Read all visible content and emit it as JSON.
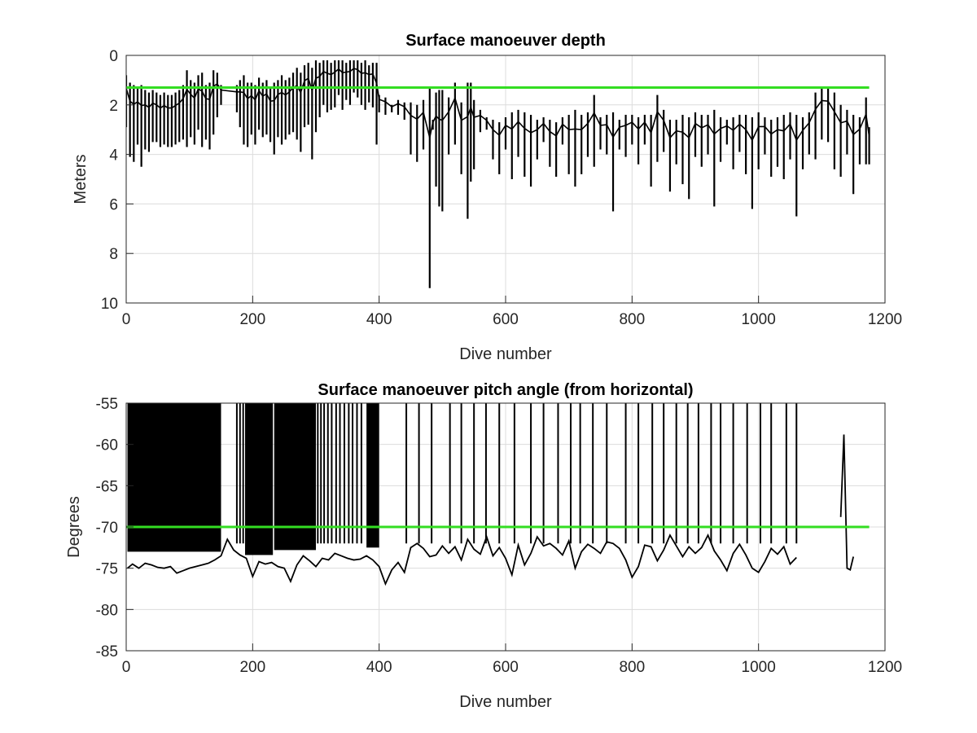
{
  "colors": {
    "data": "#000000",
    "reference": "#33dd22",
    "grid": "#dcdcdc",
    "axis": "#262626"
  },
  "chart_data": [
    {
      "type": "line",
      "title": "Surface manoeuver depth",
      "xlabel": "Dive number",
      "ylabel": "Meters",
      "xlim": [
        0,
        1200
      ],
      "ylim": [
        0,
        10
      ],
      "y_reversed": true,
      "grid": true,
      "xticks": [
        "0",
        "200",
        "400",
        "600",
        "800",
        "1000",
        "1200"
      ],
      "yticks": [
        "0",
        "2",
        "4",
        "6",
        "8",
        "10"
      ],
      "reference_line": {
        "y": 1.3,
        "x_range": [
          0,
          1175
        ]
      },
      "series": [
        {
          "x": [
            0,
            6,
            12,
            18,
            24,
            30,
            36,
            42,
            48,
            54,
            60,
            66,
            72,
            78,
            84,
            90,
            96,
            102,
            108,
            114,
            120,
            126,
            132,
            138,
            144,
            150,
            175,
            180,
            186,
            192,
            198,
            204,
            210,
            216,
            222,
            228,
            234,
            240,
            246,
            252,
            258,
            264,
            270,
            276,
            282,
            288,
            294,
            300,
            306,
            312,
            318,
            324,
            330,
            336,
            342,
            348,
            354,
            360,
            366,
            372,
            378,
            384,
            390,
            396,
            400,
            410,
            420,
            430,
            440,
            450,
            460,
            470,
            480,
            485,
            490,
            495,
            500,
            510,
            520,
            530,
            540,
            545,
            550,
            560,
            570,
            580,
            590,
            600,
            610,
            620,
            630,
            640,
            650,
            660,
            670,
            680,
            690,
            700,
            710,
            720,
            730,
            740,
            750,
            760,
            770,
            780,
            790,
            800,
            810,
            820,
            830,
            840,
            850,
            860,
            870,
            880,
            890,
            900,
            910,
            920,
            930,
            940,
            950,
            960,
            970,
            980,
            990,
            1000,
            1010,
            1020,
            1030,
            1040,
            1050,
            1060,
            1070,
            1080,
            1090,
            1100,
            1110,
            1120,
            1130,
            1140,
            1150,
            1160,
            1170,
            1175
          ],
          "low": [
            0.8,
            1.1,
            1.2,
            1.3,
            1.2,
            1.4,
            1.5,
            1.4,
            1.5,
            1.6,
            1.5,
            1.6,
            1.6,
            1.5,
            1.4,
            1.2,
            0.6,
            1.0,
            1.1,
            0.8,
            0.7,
            1.2,
            1.1,
            0.6,
            0.7,
            1.2,
            1.2,
            1.0,
            0.8,
            1.1,
            1.1,
            1.2,
            0.9,
            1.1,
            1.0,
            1.3,
            1.1,
            1.0,
            0.8,
            1.0,
            0.9,
            0.7,
            0.5,
            0.7,
            0.4,
            0.3,
            0.5,
            0.2,
            0.3,
            0.2,
            0.2,
            0.3,
            0.2,
            0.2,
            0.2,
            0.3,
            0.2,
            0.2,
            0.2,
            0.3,
            0.2,
            0.4,
            0.3,
            0.3,
            1.6,
            1.7,
            2.0,
            1.8,
            1.9,
            1.9,
            2.0,
            1.8,
            1.3,
            2.6,
            1.5,
            1.4,
            1.4,
            1.7,
            1.1,
            1.9,
            1.1,
            1.1,
            1.8,
            2.2,
            2.5,
            2.6,
            2.7,
            2.5,
            2.3,
            2.2,
            2.3,
            2.4,
            2.6,
            2.5,
            2.6,
            2.7,
            2.5,
            2.4,
            2.2,
            2.4,
            2.3,
            1.6,
            2.5,
            2.4,
            2.3,
            2.6,
            2.4,
            2.4,
            2.5,
            2.4,
            2.4,
            1.6,
            2.2,
            2.6,
            2.6,
            2.4,
            2.5,
            2.3,
            2.4,
            2.4,
            2.2,
            2.5,
            2.6,
            2.5,
            2.4,
            2.4,
            2.5,
            2.3,
            2.5,
            2.6,
            2.5,
            2.4,
            2.3,
            2.4,
            2.5,
            2.3,
            1.5,
            1.3,
            1.3,
            1.5,
            2.0,
            2.2,
            2.4,
            2.5,
            1.7,
            2.9
          ],
          "high": [
            2.9,
            4.1,
            4.3,
            3.6,
            4.5,
            3.8,
            3.9,
            3.5,
            3.5,
            3.7,
            3.6,
            3.7,
            3.7,
            3.6,
            3.5,
            3.4,
            3.7,
            3.3,
            3.6,
            3.0,
            3.7,
            3.4,
            3.8,
            3.2,
            2.5,
            2.0,
            2.3,
            2.9,
            3.6,
            3.7,
            3.2,
            3.6,
            3.0,
            3.3,
            3.2,
            3.5,
            4.0,
            3.3,
            3.6,
            3.4,
            3.2,
            3.1,
            3.4,
            3.9,
            2.9,
            2.8,
            4.2,
            3.1,
            2.5,
            2.0,
            2.3,
            2.2,
            2.1,
            1.6,
            2.2,
            1.8,
            2.0,
            1.5,
            1.7,
            2.0,
            2.2,
            1.9,
            2.1,
            3.6,
            2.3,
            2.4,
            2.3,
            2.4,
            2.6,
            4.0,
            4.3,
            3.8,
            9.4,
            3.0,
            5.3,
            6.1,
            6.3,
            4.0,
            3.6,
            4.8,
            6.6,
            5.1,
            4.6,
            3.1,
            3.0,
            4.2,
            4.8,
            3.8,
            5.0,
            4.1,
            4.9,
            5.3,
            4.2,
            3.5,
            4.5,
            4.9,
            3.6,
            4.8,
            5.3,
            4.8,
            4.1,
            4.5,
            3.8,
            4.0,
            6.3,
            3.8,
            4.1,
            3.6,
            4.4,
            3.6,
            5.3,
            4.3,
            3.9,
            5.5,
            4.4,
            5.2,
            5.8,
            4.1,
            4.5,
            4.0,
            6.1,
            4.3,
            3.6,
            4.6,
            3.9,
            4.8,
            6.2,
            4.6,
            4.0,
            4.9,
            4.5,
            5.0,
            4.2,
            6.5,
            4.6,
            4.0,
            4.2,
            3.4,
            3.5,
            4.6,
            4.9,
            4.0,
            5.6,
            4.4,
            4.4,
            4.4
          ]
        }
      ]
    },
    {
      "type": "line",
      "title": "Surface manoeuver pitch angle (from horizontal)",
      "xlabel": "Dive number",
      "ylabel": "Degrees",
      "xlim": [
        0,
        1200
      ],
      "ylim": [
        -85,
        -55
      ],
      "grid": true,
      "xticks": [
        "0",
        "200",
        "400",
        "600",
        "800",
        "1000",
        "1200"
      ],
      "yticks": [
        "-55",
        "-60",
        "-65",
        "-70",
        "-75",
        "-80",
        "-85"
      ],
      "reference_line": {
        "y": -70,
        "x_range": [
          0,
          1175
        ]
      },
      "dense_regions": [
        {
          "x_range": [
            2,
            150
          ],
          "y_bottom": -73.0
        },
        {
          "x_range": [
            188,
            232
          ],
          "y_bottom": -73.4
        },
        {
          "x_range": [
            234,
            300
          ],
          "y_bottom": -72.8
        },
        {
          "x_range": [
            380,
            400
          ],
          "y_bottom": -72.5
        }
      ],
      "spikes_x": [
        175,
        180,
        185,
        303,
        308,
        313,
        319,
        325,
        332,
        338,
        345,
        352,
        358,
        365,
        372,
        443,
        463,
        483,
        512,
        530,
        550,
        569,
        590,
        614,
        640,
        660,
        683,
        703,
        718,
        738,
        760,
        790,
        810,
        832,
        850,
        870,
        888,
        905,
        925,
        940,
        960,
        982,
        1003,
        1020,
        1044,
        1060
      ],
      "series": [
        {
          "x": [
            2,
            10,
            20,
            30,
            40,
            50,
            60,
            70,
            80,
            90,
            100,
            110,
            120,
            130,
            140,
            150,
            160,
            170,
            180,
            190,
            200,
            210,
            220,
            230,
            240,
            250,
            260,
            270,
            280,
            290,
            300,
            310,
            320,
            330,
            340,
            350,
            360,
            370,
            380,
            390,
            400,
            410,
            420,
            430,
            440,
            450,
            460,
            470,
            480,
            490,
            500,
            510,
            520,
            530,
            540,
            550,
            560,
            570,
            580,
            590,
            600,
            610,
            620,
            630,
            640,
            650,
            660,
            670,
            680,
            690,
            700,
            710,
            720,
            730,
            740,
            750,
            760,
            770,
            780,
            790,
            800,
            810,
            820,
            830,
            840,
            850,
            860,
            870,
            880,
            890,
            900,
            910,
            920,
            930,
            940,
            950,
            960,
            970,
            980,
            990,
            1000,
            1010,
            1020,
            1030,
            1040,
            1050,
            1060
          ],
          "y": [
            -75.0,
            -74.5,
            -75.0,
            -74.4,
            -74.6,
            -74.9,
            -75.0,
            -74.8,
            -75.6,
            -75.3,
            -75.0,
            -74.8,
            -74.6,
            -74.4,
            -74.0,
            -73.5,
            -71.5,
            -72.8,
            -73.4,
            -73.8,
            -76.0,
            -74.2,
            -74.5,
            -74.3,
            -74.8,
            -75.0,
            -76.6,
            -74.6,
            -73.5,
            -74.1,
            -74.8,
            -73.8,
            -74.0,
            -73.2,
            -73.5,
            -73.8,
            -74.0,
            -73.9,
            -73.5,
            -74.0,
            -74.8,
            -76.9,
            -75.2,
            -74.3,
            -75.5,
            -72.5,
            -72.0,
            -72.6,
            -73.6,
            -73.4,
            -72.3,
            -73.2,
            -72.4,
            -74.0,
            -71.5,
            -72.7,
            -73.3,
            -71.2,
            -73.5,
            -72.5,
            -73.8,
            -75.8,
            -72.2,
            -74.6,
            -73.2,
            -71.2,
            -72.3,
            -72.0,
            -72.6,
            -73.4,
            -71.7,
            -75.0,
            -73.0,
            -72.1,
            -72.6,
            -73.2,
            -71.8,
            -72.0,
            -72.6,
            -74.0,
            -76.1,
            -74.8,
            -72.2,
            -72.4,
            -74.1,
            -72.8,
            -71.0,
            -72.3,
            -73.6,
            -72.4,
            -73.2,
            -72.5,
            -71.0,
            -72.9,
            -74.0,
            -75.3,
            -73.2,
            -72.1,
            -73.4,
            -75.0,
            -75.5,
            -74.2,
            -72.6,
            -73.3,
            -72.4,
            -74.5,
            -73.7
          ]
        },
        {
          "x": [
            1130,
            1135,
            1140,
            1145,
            1150
          ],
          "y": [
            -68.8,
            -58.8,
            -75.0,
            -75.2,
            -73.6
          ]
        }
      ]
    }
  ]
}
